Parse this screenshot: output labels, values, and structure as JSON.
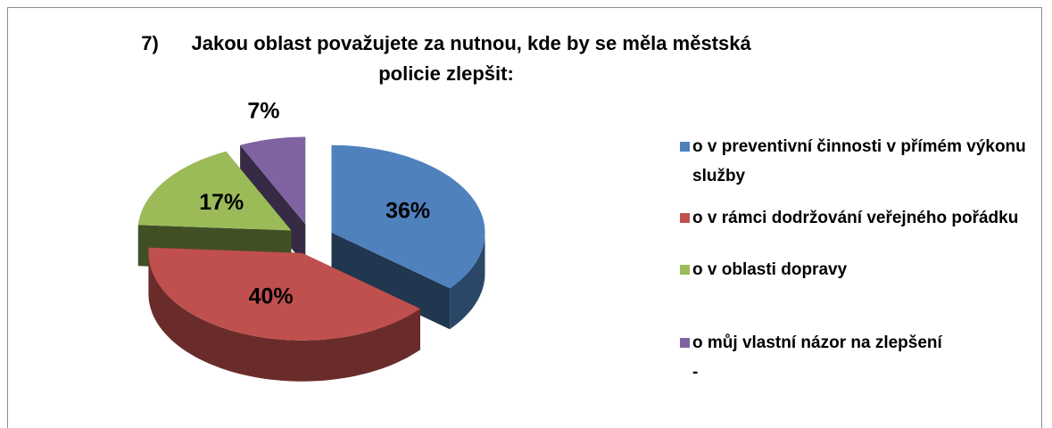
{
  "chart_data": {
    "type": "pie",
    "title": "7)      Jakou oblast považujete za nutnou, kde by se měla městská policie zlepšit:",
    "categories": [
      "o   v preventivní činnosti v přímém výkonu služby",
      "o   v rámci dodržování veřejného pořádku",
      "o   v oblasti dopravy",
      "o   můj vlastní názor na zlepšení\n-"
    ],
    "values": [
      36,
      40,
      17,
      7
    ],
    "value_labels": [
      "36%",
      "40%",
      "17%",
      "7%"
    ],
    "colors": [
      "#4f81bd",
      "#c0504d",
      "#9bbb59",
      "#8064a2"
    ],
    "legend": "right"
  }
}
